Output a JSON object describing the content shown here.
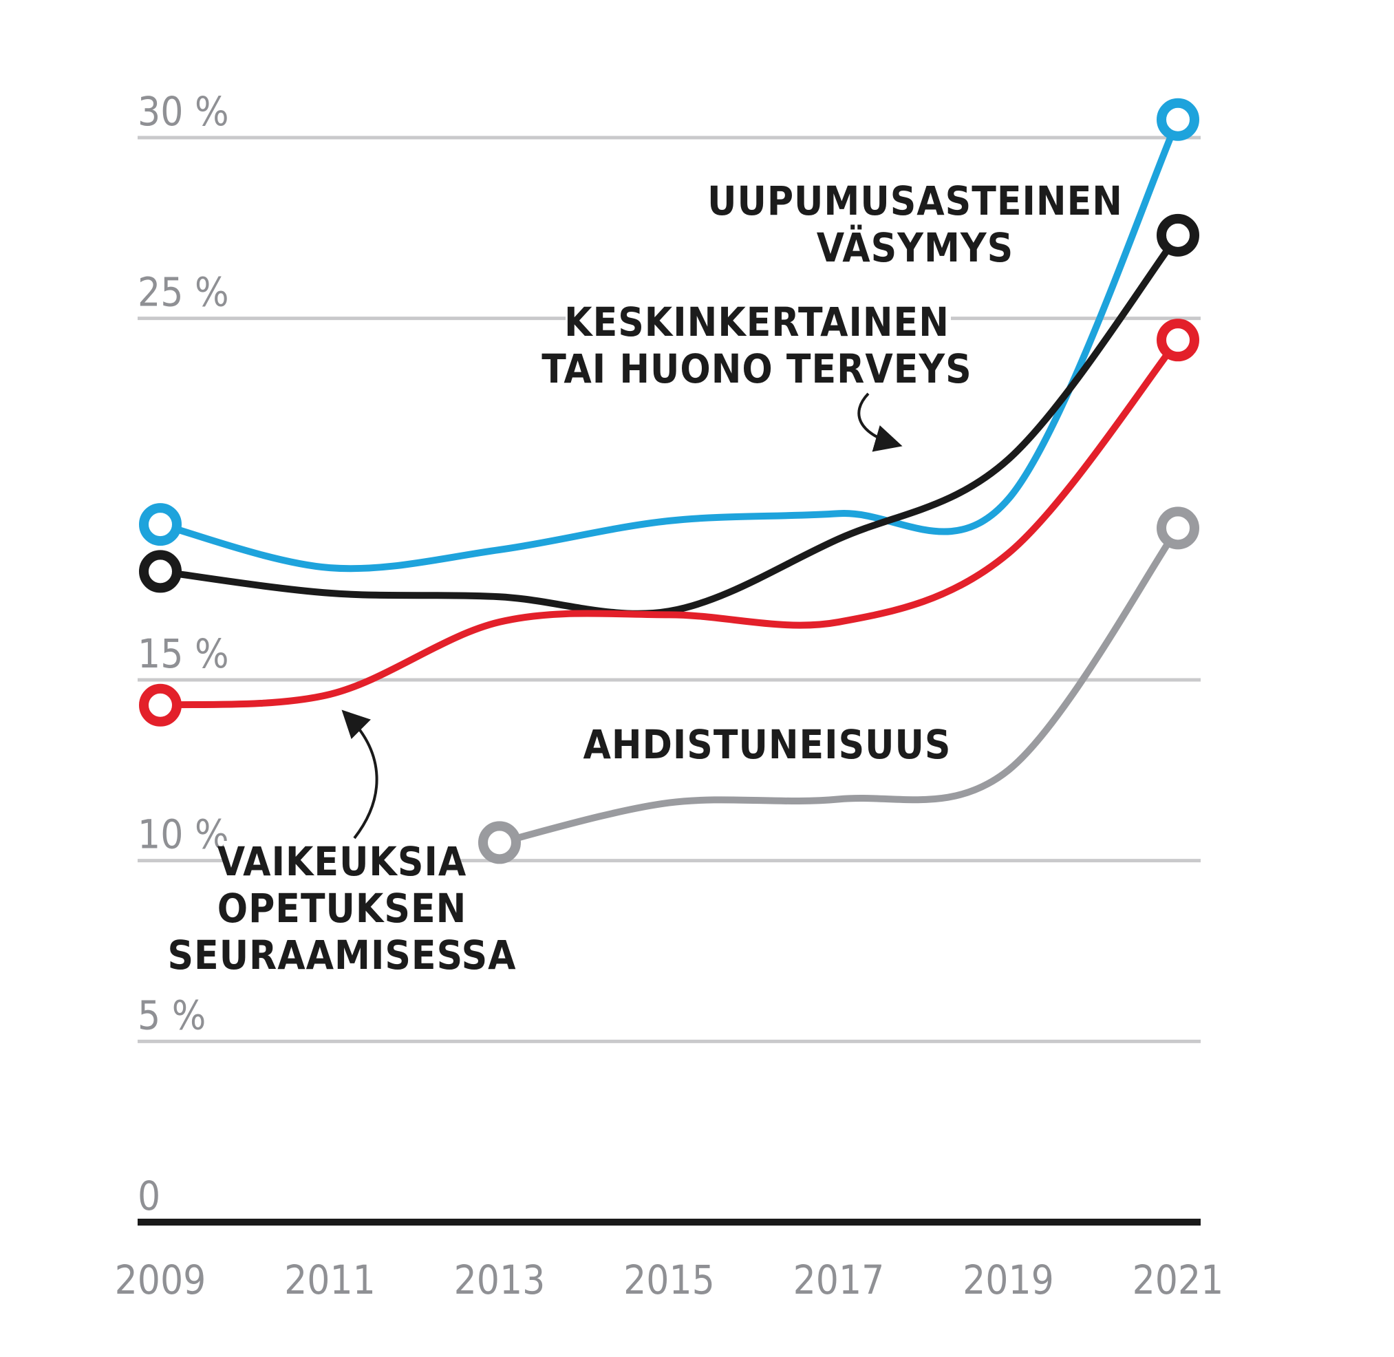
{
  "chart_data": {
    "type": "line",
    "title": "",
    "xlabel": "",
    "ylabel": "",
    "ylim": [
      0,
      30
    ],
    "y_ticks": [
      0,
      5,
      10,
      15,
      25,
      30
    ],
    "y_tick_labels": [
      "0",
      "5 %",
      "10 %",
      "15 %",
      "25 %",
      "30 %"
    ],
    "x_range": [
      2009,
      2021
    ],
    "x_ticks": [
      "2009",
      "2011",
      "2013",
      "2015",
      "2017",
      "2019",
      "2021"
    ],
    "grid": true,
    "series": [
      {
        "key": "blue",
        "color": "#1ea3dc",
        "x": [
          2009,
          2011,
          2013,
          2015,
          2017,
          2019,
          2021
        ],
        "values": [
          19.3,
          18.1,
          18.6,
          19.4,
          19.6,
          20.0,
          30.5
        ]
      },
      {
        "key": "black",
        "color": "#1a1a1a",
        "x": [
          2009,
          2011,
          2013,
          2015,
          2017,
          2019,
          2021
        ],
        "values": [
          18.0,
          17.4,
          17.3,
          16.9,
          18.9,
          21.1,
          27.3
        ]
      },
      {
        "key": "red",
        "color": "#e3202a",
        "x": [
          2009,
          2011,
          2013,
          2015,
          2017,
          2019,
          2021
        ],
        "values": [
          14.3,
          14.6,
          16.6,
          16.8,
          16.6,
          18.5,
          24.4
        ]
      },
      {
        "key": "gray",
        "color": "#9a9b9f",
        "x": [
          2013,
          2015,
          2017,
          2019,
          2021
        ],
        "values": [
          10.5,
          11.6,
          11.7,
          12.5,
          19.2
        ]
      }
    ],
    "annotations": {
      "uupumus": [
        "UUPUMUSASTEINEN",
        "VÄSYMYS"
      ],
      "terveys": [
        "KESKINKERTAINEN",
        "TAI HUONO TERVEYS"
      ],
      "ahdistus": [
        "AHDISTUNEISUUS"
      ],
      "opetus": [
        "VAIKEUKSIA",
        "OPETUKSEN",
        "SEURAAMISESSA"
      ]
    }
  }
}
